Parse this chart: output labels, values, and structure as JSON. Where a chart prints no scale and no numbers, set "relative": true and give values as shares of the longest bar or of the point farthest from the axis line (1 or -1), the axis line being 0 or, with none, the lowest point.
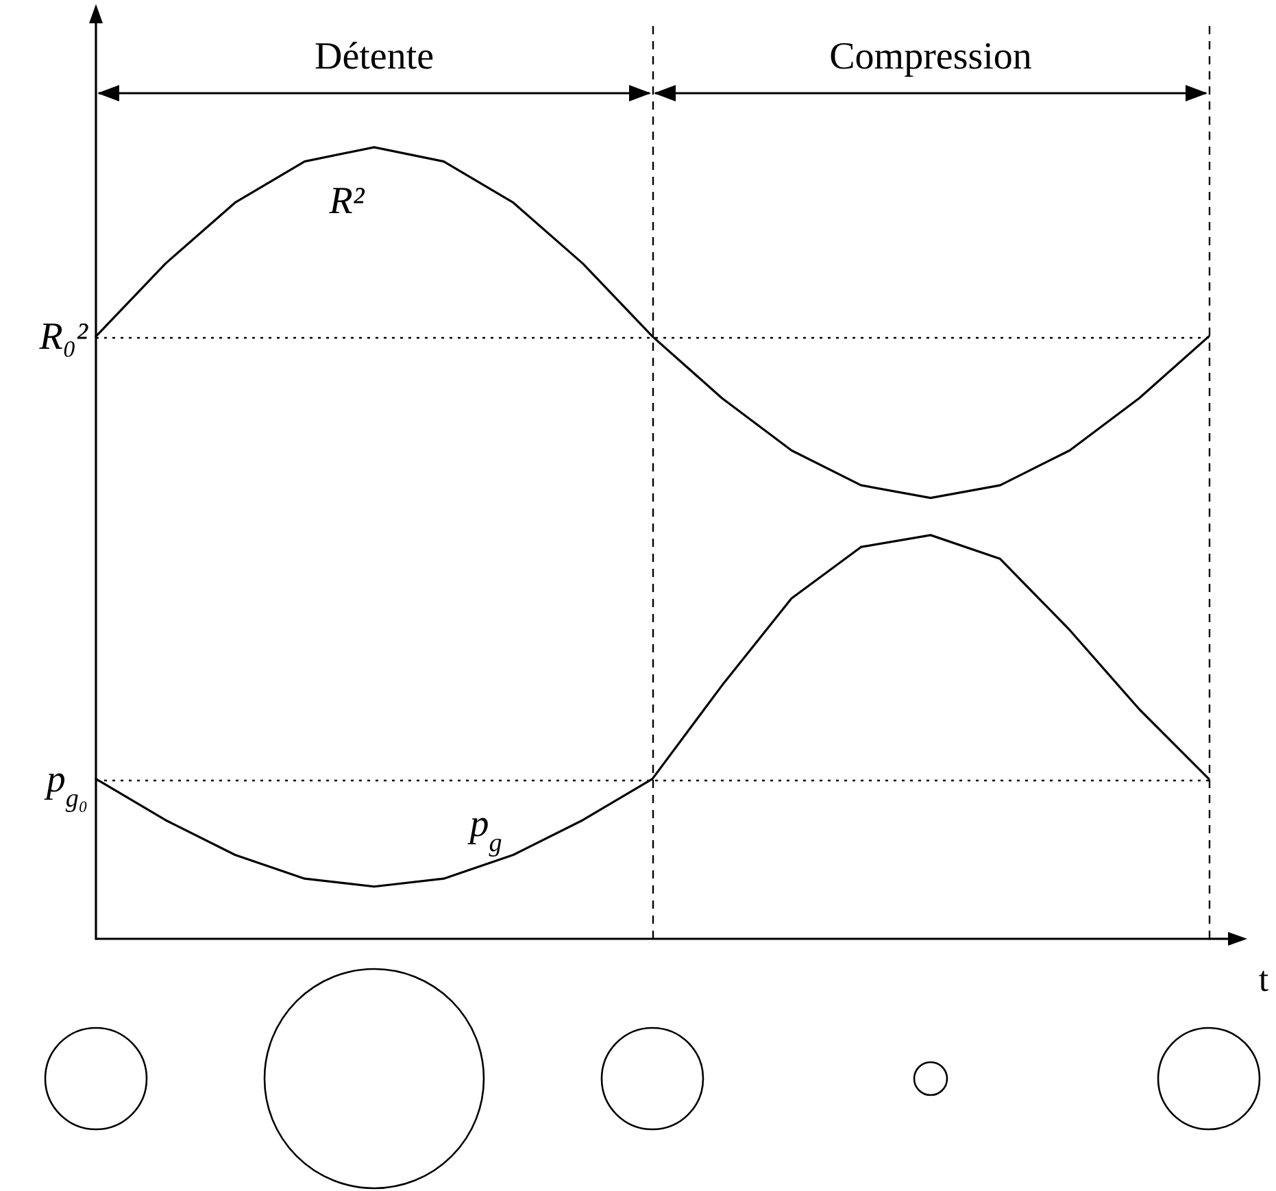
{
  "chart_data": {
    "type": "line",
    "relative": true,
    "xlabel": "t",
    "categories": [
      null,
      null,
      null,
      null,
      null,
      null,
      null,
      null,
      null,
      null,
      null,
      null,
      null,
      null,
      null,
      null,
      null
    ],
    "grid": false,
    "legend": false,
    "marker": "none",
    "line_style": "solid",
    "series": [
      {
        "name": "R²",
        "color": "#000000",
        "values": [
          0.761,
          0.853,
          0.93,
          0.982,
          1,
          0.982,
          0.93,
          0.853,
          0.761,
          0.683,
          0.617,
          0.573,
          0.557,
          0.573,
          0.617,
          0.683,
          0.761
        ]
      },
      {
        "name": "p$_{g}$",
        "color": "#000000",
        "values": [
          0.202,
          0.15,
          0.106,
          0.076,
          0.066,
          0.076,
          0.106,
          0.15,
          0.202,
          0.32,
          0.43,
          0.495,
          0.51,
          0.48,
          0.39,
          0.29,
          0.202
        ]
      }
    ],
    "ref_lines": [
      {
        "axis": "y",
        "value": 0.761,
        "label": "R₀²",
        "line_style": "dotted"
      },
      {
        "axis": "y",
        "value": 0.202,
        "label": "p$_{g₀}$",
        "line_style": "dotted"
      }
    ],
    "annotations": [
      "Détente",
      "Compression"
    ]
  }
}
